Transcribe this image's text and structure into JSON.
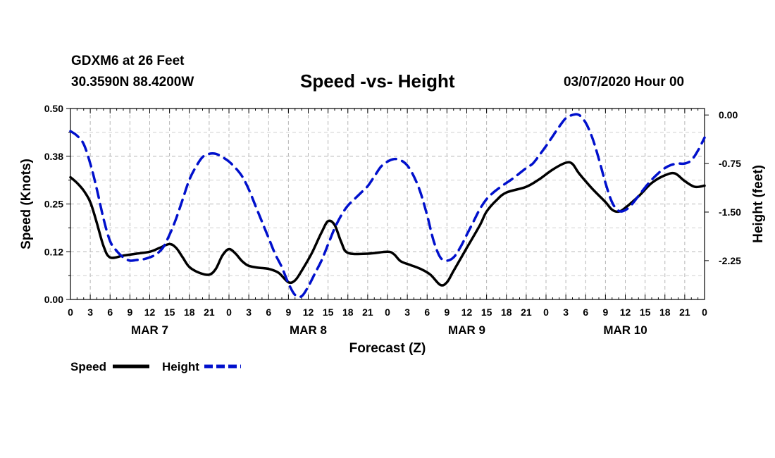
{
  "header": {
    "station": "GDXM6 at 26 Feet",
    "coords": "30.3590N 88.4200W",
    "title": "Speed -vs- Height",
    "timestamp": "03/07/2020 Hour 00"
  },
  "chart_data": {
    "type": "line",
    "title": "Speed -vs- Height",
    "xlabel": "Forecast (Z)",
    "ylabel": "Speed (Knots)",
    "y2label": "Height (feet)",
    "xlim": [
      0,
      96
    ],
    "ylim": [
      0,
      0.5
    ],
    "y2lim": [
      -2.85,
      0.1
    ],
    "x_ticks": [
      0,
      3,
      6,
      9,
      12,
      15,
      18,
      21,
      24,
      27,
      30,
      33,
      36,
      39,
      42,
      45,
      48,
      51,
      54,
      57,
      60,
      63,
      66,
      69,
      72,
      75,
      78,
      81,
      84,
      87,
      90,
      93,
      96
    ],
    "x_tick_labels": [
      "0",
      "3",
      "6",
      "9",
      "12",
      "15",
      "18",
      "21",
      "0",
      "3",
      "6",
      "9",
      "12",
      "15",
      "18",
      "21",
      "0",
      "3",
      "6",
      "9",
      "12",
      "15",
      "18",
      "21",
      "0",
      "3",
      "6",
      "9",
      "12",
      "15",
      "18",
      "21",
      "0"
    ],
    "y_ticks": [
      0.0,
      0.125,
      0.25,
      0.375,
      0.5
    ],
    "y_tick_labels": [
      "0.00",
      "0.12",
      "0.25",
      "0.38",
      "0.50"
    ],
    "y2_ticks": [
      0.0,
      -0.75,
      -1.5,
      -2.25
    ],
    "y2_tick_labels": [
      "0.00",
      "-0.75",
      "-1.50",
      "-2.25"
    ],
    "day_labels": [
      {
        "x": 12,
        "label": "MAR 7"
      },
      {
        "x": 36,
        "label": "MAR 8"
      },
      {
        "x": 60,
        "label": "MAR 9"
      },
      {
        "x": 84,
        "label": "MAR 10"
      }
    ],
    "grid": true,
    "series": [
      {
        "name": "Speed",
        "axis": "left",
        "color": "#000000",
        "style": "solid",
        "points": [
          [
            0,
            0.32
          ],
          [
            1,
            0.305
          ],
          [
            2,
            0.285
          ],
          [
            3,
            0.255
          ],
          [
            4,
            0.2
          ],
          [
            5,
            0.14
          ],
          [
            6,
            0.11
          ],
          [
            8,
            0.115
          ],
          [
            10,
            0.12
          ],
          [
            12,
            0.125
          ],
          [
            13.5,
            0.135
          ],
          [
            15,
            0.145
          ],
          [
            16,
            0.135
          ],
          [
            17,
            0.11
          ],
          [
            18,
            0.085
          ],
          [
            19.5,
            0.07
          ],
          [
            21,
            0.065
          ],
          [
            22,
            0.08
          ],
          [
            23,
            0.115
          ],
          [
            24,
            0.132
          ],
          [
            25,
            0.12
          ],
          [
            26,
            0.1
          ],
          [
            27,
            0.088
          ],
          [
            28.5,
            0.083
          ],
          [
            30,
            0.08
          ],
          [
            31.5,
            0.07
          ],
          [
            33,
            0.045
          ],
          [
            34,
            0.05
          ],
          [
            35,
            0.075
          ],
          [
            36.5,
            0.12
          ],
          [
            38,
            0.175
          ],
          [
            39,
            0.205
          ],
          [
            40,
            0.195
          ],
          [
            41,
            0.15
          ],
          [
            42,
            0.122
          ],
          [
            45,
            0.12
          ],
          [
            48,
            0.125
          ],
          [
            49,
            0.118
          ],
          [
            50,
            0.1
          ],
          [
            51.5,
            0.09
          ],
          [
            53,
            0.08
          ],
          [
            54.5,
            0.065
          ],
          [
            56,
            0.038
          ],
          [
            57,
            0.045
          ],
          [
            58,
            0.075
          ],
          [
            60,
            0.135
          ],
          [
            62,
            0.195
          ],
          [
            63,
            0.23
          ],
          [
            64.5,
            0.26
          ],
          [
            66,
            0.28
          ],
          [
            69,
            0.295
          ],
          [
            71,
            0.315
          ],
          [
            73,
            0.34
          ],
          [
            75,
            0.358
          ],
          [
            76,
            0.355
          ],
          [
            77,
            0.33
          ],
          [
            79,
            0.29
          ],
          [
            81,
            0.255
          ],
          [
            82,
            0.235
          ],
          [
            83,
            0.23
          ],
          [
            84,
            0.24
          ],
          [
            86,
            0.27
          ],
          [
            88,
            0.305
          ],
          [
            90,
            0.325
          ],
          [
            91.5,
            0.33
          ],
          [
            93,
            0.31
          ],
          [
            94.5,
            0.295
          ],
          [
            96,
            0.298
          ]
        ]
      },
      {
        "name": "Height",
        "axis": "right",
        "color": "#0010cc",
        "style": "dashed",
        "points": [
          [
            0,
            -0.25
          ],
          [
            1,
            -0.32
          ],
          [
            2,
            -0.45
          ],
          [
            3,
            -0.75
          ],
          [
            4,
            -1.15
          ],
          [
            5,
            -1.6
          ],
          [
            6,
            -1.95
          ],
          [
            7,
            -2.1
          ],
          [
            8,
            -2.2
          ],
          [
            9,
            -2.25
          ],
          [
            10,
            -2.24
          ],
          [
            11,
            -2.23
          ],
          [
            12,
            -2.2
          ],
          [
            13,
            -2.15
          ],
          [
            14,
            -2.05
          ],
          [
            15,
            -1.85
          ],
          [
            16,
            -1.6
          ],
          [
            17,
            -1.3
          ],
          [
            18,
            -1.0
          ],
          [
            19,
            -0.8
          ],
          [
            20,
            -0.65
          ],
          [
            21,
            -0.6
          ],
          [
            22,
            -0.6
          ],
          [
            23,
            -0.65
          ],
          [
            24,
            -0.72
          ],
          [
            25,
            -0.82
          ],
          [
            26,
            -0.95
          ],
          [
            27,
            -1.15
          ],
          [
            28,
            -1.4
          ],
          [
            29,
            -1.65
          ],
          [
            30,
            -1.9
          ],
          [
            31,
            -2.15
          ],
          [
            32,
            -2.35
          ],
          [
            33,
            -2.6
          ],
          [
            34,
            -2.78
          ],
          [
            35,
            -2.8
          ],
          [
            36,
            -2.65
          ],
          [
            37,
            -2.45
          ],
          [
            38,
            -2.25
          ],
          [
            39,
            -2.0
          ],
          [
            40,
            -1.75
          ],
          [
            41,
            -1.55
          ],
          [
            42,
            -1.4
          ],
          [
            43,
            -1.3
          ],
          [
            44,
            -1.2
          ],
          [
            45,
            -1.1
          ],
          [
            46,
            -0.95
          ],
          [
            47,
            -0.8
          ],
          [
            48,
            -0.72
          ],
          [
            49,
            -0.68
          ],
          [
            50,
            -0.7
          ],
          [
            51,
            -0.78
          ],
          [
            52,
            -0.95
          ],
          [
            53,
            -1.2
          ],
          [
            54,
            -1.55
          ],
          [
            55,
            -1.95
          ],
          [
            56,
            -2.2
          ],
          [
            57,
            -2.25
          ],
          [
            58,
            -2.2
          ],
          [
            59,
            -2.05
          ],
          [
            60,
            -1.85
          ],
          [
            61,
            -1.65
          ],
          [
            62,
            -1.45
          ],
          [
            63,
            -1.3
          ],
          [
            64,
            -1.2
          ],
          [
            65,
            -1.12
          ],
          [
            66,
            -1.05
          ],
          [
            67,
            -0.98
          ],
          [
            68,
            -0.9
          ],
          [
            69,
            -0.82
          ],
          [
            70,
            -0.75
          ],
          [
            71,
            -0.62
          ],
          [
            72,
            -0.48
          ],
          [
            73,
            -0.33
          ],
          [
            74,
            -0.18
          ],
          [
            75,
            -0.05
          ],
          [
            76,
            0.0
          ],
          [
            77,
            0.0
          ],
          [
            78,
            -0.12
          ],
          [
            79,
            -0.35
          ],
          [
            80,
            -0.68
          ],
          [
            81,
            -1.05
          ],
          [
            82,
            -1.35
          ],
          [
            83,
            -1.48
          ],
          [
            84,
            -1.47
          ],
          [
            85,
            -1.38
          ],
          [
            86,
            -1.25
          ],
          [
            87,
            -1.12
          ],
          [
            88,
            -1.0
          ],
          [
            89,
            -0.9
          ],
          [
            90,
            -0.82
          ],
          [
            91,
            -0.77
          ],
          [
            92,
            -0.75
          ],
          [
            93,
            -0.75
          ],
          [
            94,
            -0.7
          ],
          [
            95,
            -0.55
          ],
          [
            96,
            -0.35
          ]
        ]
      }
    ],
    "legend": [
      {
        "label": "Speed",
        "color": "#000000",
        "style": "solid"
      },
      {
        "label": "Height",
        "color": "#0010cc",
        "style": "dashed"
      }
    ],
    "legend_position": "bottom-left"
  }
}
